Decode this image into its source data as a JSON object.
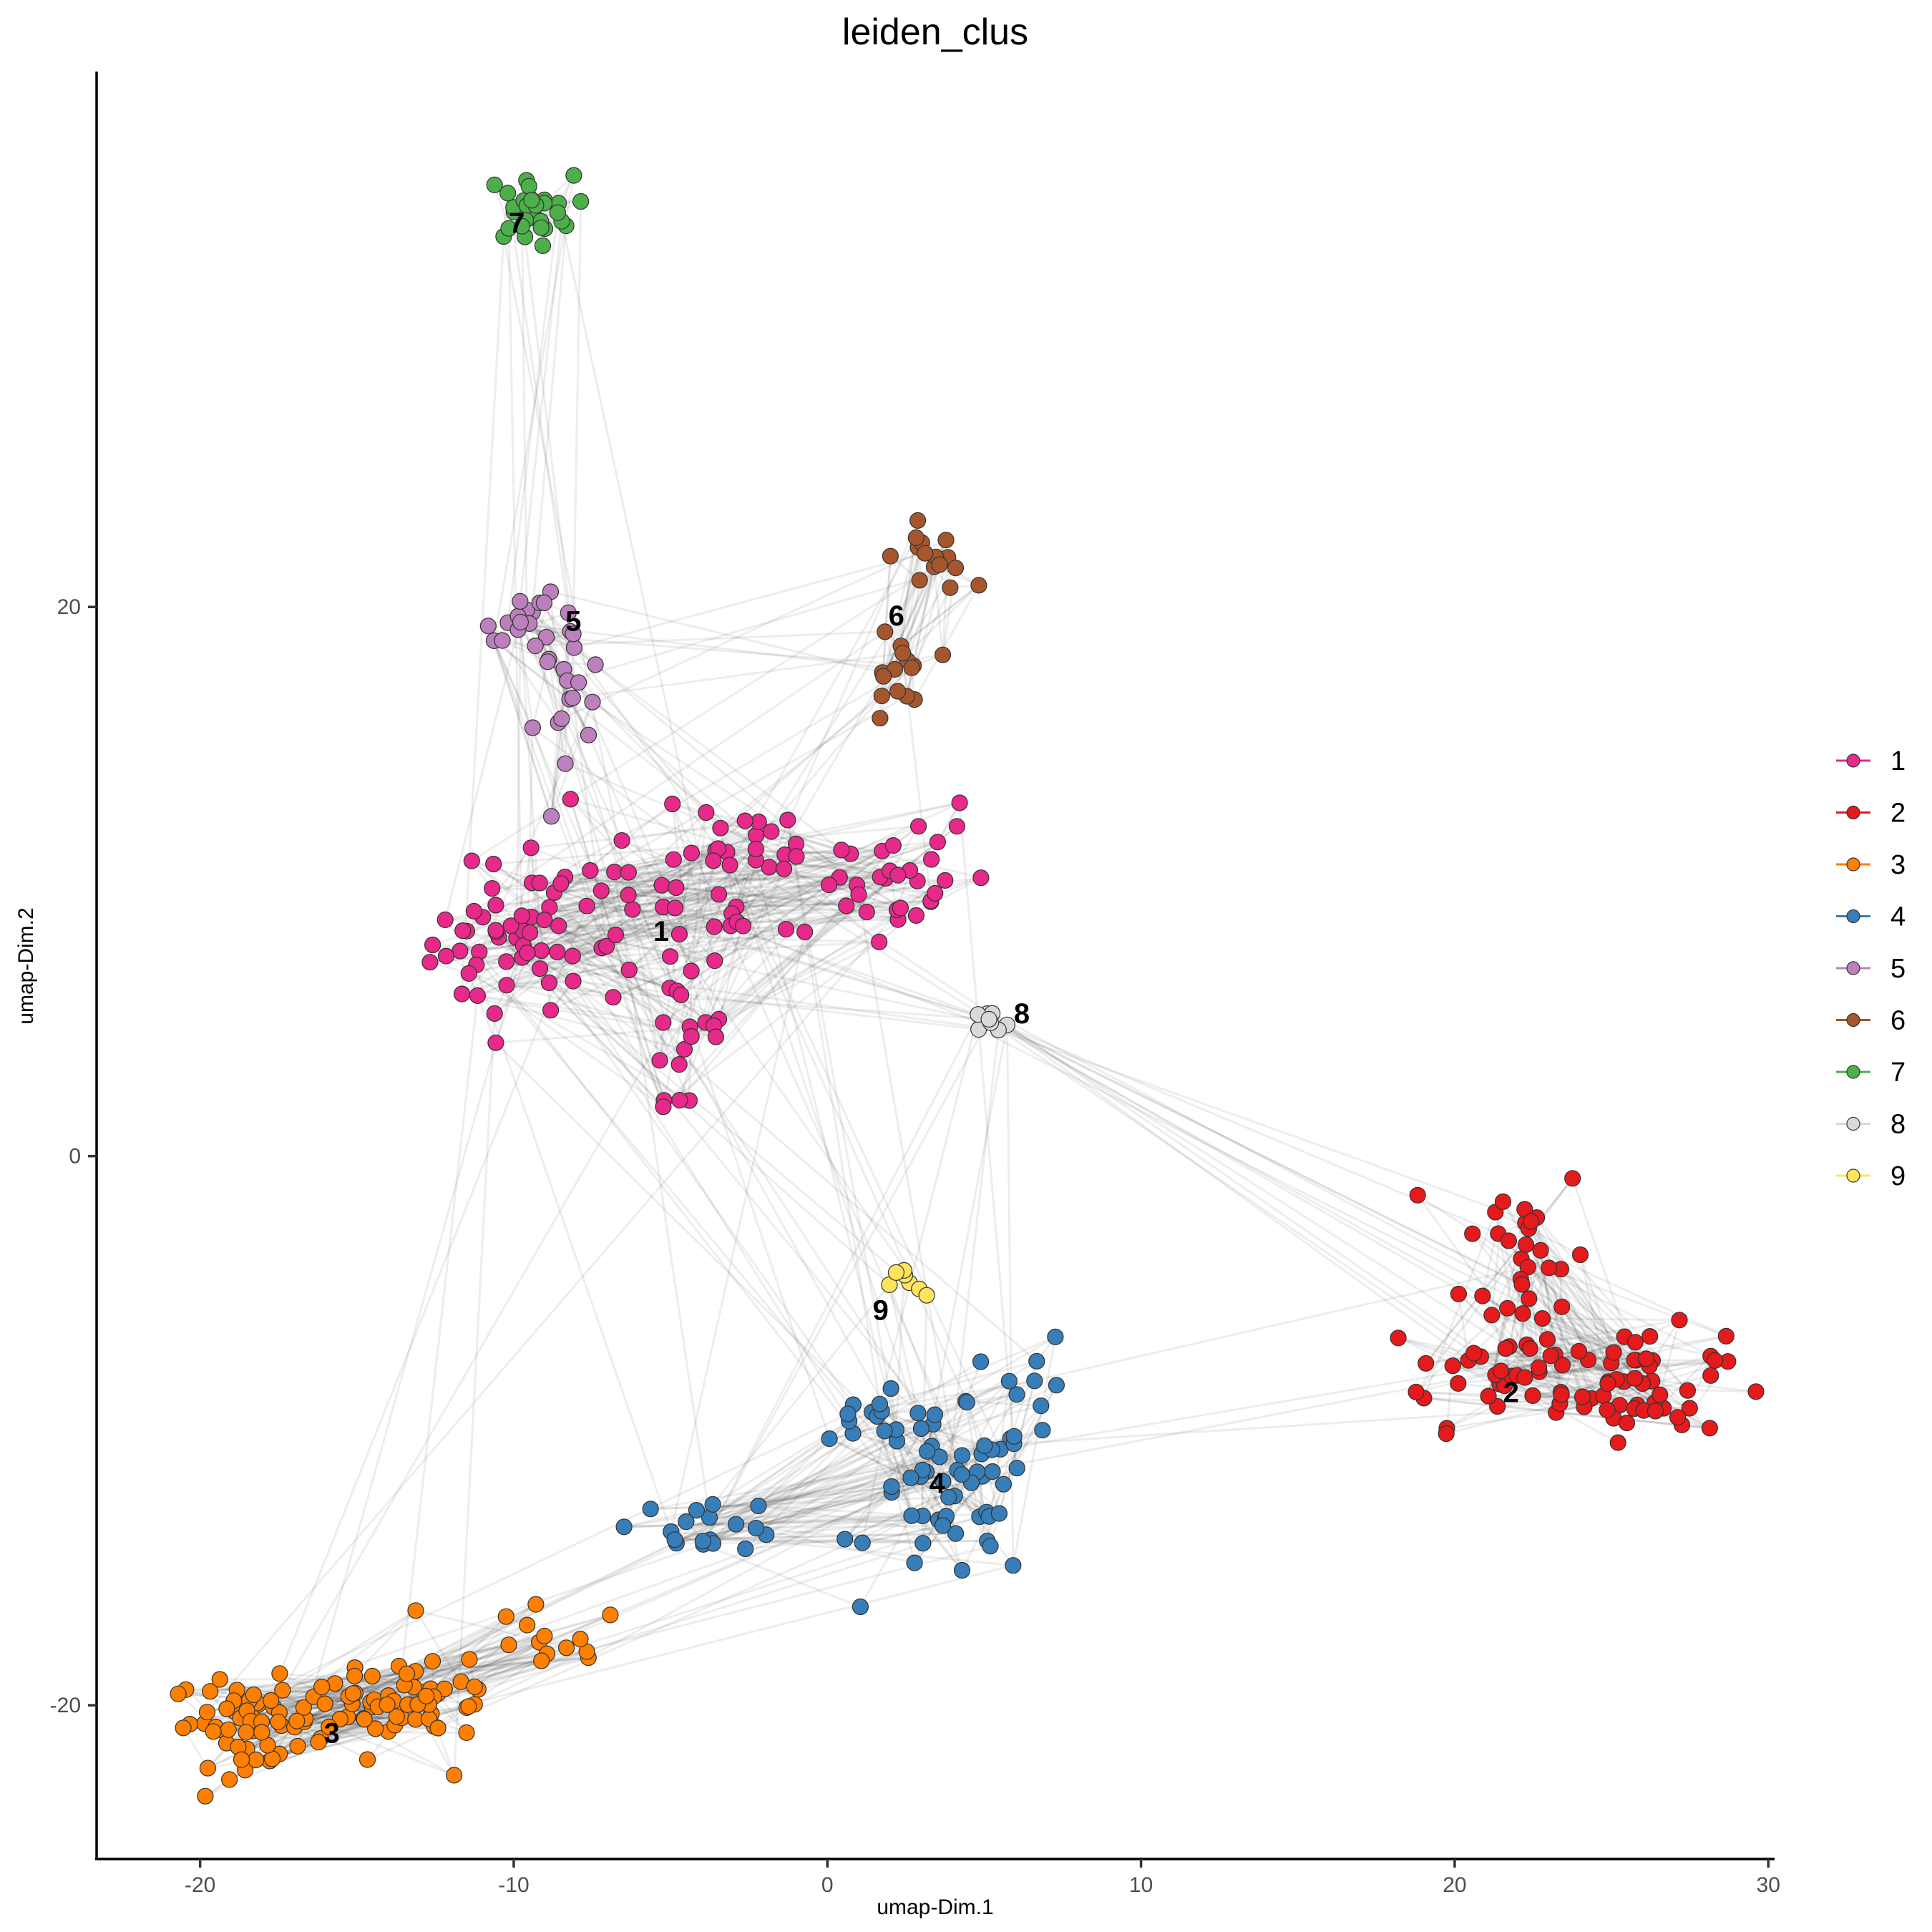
{
  "chart_data": {
    "type": "scatter",
    "title": "leiden_clus",
    "xlabel": "umap-Dim.1",
    "ylabel": "umap-Dim.2",
    "xlim": [
      -23.3,
      30.2
    ],
    "ylim": [
      -25.6,
      39.5
    ],
    "xticks": [
      -20,
      -10,
      0,
      10,
      20,
      30
    ],
    "yticks": [
      -20,
      0,
      20
    ],
    "grid": false,
    "legend_position": "right",
    "network_edges": true,
    "series": [
      {
        "name": "1",
        "color": "#E7298A",
        "center": [
          -5.3,
          8.2
        ],
        "label_pos": [
          -5.3,
          8.2
        ],
        "n": 150,
        "blobs": [
          [
            -10.2,
            7.8,
            1.2,
            1.4,
            0.25
          ],
          [
            -6.8,
            8.5,
            2.2,
            1.8,
            0.25
          ],
          [
            -2.0,
            10.0,
            2.5,
            1.3,
            0.22
          ],
          [
            1.5,
            10.5,
            1.8,
            1.6,
            0.18
          ],
          [
            -4.5,
            4.0,
            0.8,
            1.8,
            0.1
          ]
        ]
      },
      {
        "name": "2",
        "color": "#E41A1C",
        "center": [
          21.8,
          -8.6
        ],
        "label_pos": [
          21.8,
          -8.6
        ],
        "n": 110,
        "blobs": [
          [
            22.3,
            -3.5,
            1.0,
            1.8,
            0.25
          ],
          [
            21.8,
            -7.8,
            2.0,
            1.0,
            0.35
          ],
          [
            26.0,
            -8.3,
            1.3,
            1.0,
            0.4
          ]
        ]
      },
      {
        "name": "3",
        "color": "#FF7F00",
        "center": [
          -15.8,
          -21.0
        ],
        "label_pos": [
          -15.8,
          -21.0
        ],
        "n": 130,
        "blobs": [
          [
            -18.6,
            -20.6,
            1.2,
            0.8,
            0.35
          ],
          [
            -15.5,
            -20.5,
            1.6,
            0.8,
            0.3
          ],
          [
            -12.6,
            -19.5,
            1.2,
            0.9,
            0.25
          ],
          [
            -9.0,
            -17.8,
            1.3,
            0.7,
            0.1
          ]
        ]
      },
      {
        "name": "4",
        "color": "#377EB8",
        "center": [
          3.5,
          -11.9
        ],
        "label_pos": [
          3.5,
          -11.9
        ],
        "n": 95,
        "blobs": [
          [
            4.0,
            -12.6,
            1.3,
            1.5,
            0.55
          ],
          [
            1.8,
            -9.5,
            1.1,
            0.8,
            0.15
          ],
          [
            6.6,
            -8.5,
            0.6,
            1.0,
            0.1
          ],
          [
            -3.8,
            -13.4,
            1.2,
            0.5,
            0.2
          ]
        ]
      },
      {
        "name": "5",
        "color": "#BC80BD",
        "center": [
          -8.1,
          19.5
        ],
        "label_pos": [
          -8.1,
          19.5
        ],
        "n": 35,
        "blobs": [
          [
            -9.3,
            19.6,
            0.8,
            0.4,
            0.45
          ],
          [
            -8.4,
            17.2,
            0.7,
            1.2,
            0.55
          ]
        ]
      },
      {
        "name": "6",
        "color": "#A6562C",
        "center": [
          2.2,
          19.7
        ],
        "label_pos": [
          2.2,
          19.7
        ],
        "n": 30,
        "blobs": [
          [
            3.4,
            21.8,
            0.6,
            0.6,
            0.5
          ],
          [
            2.1,
            17.3,
            0.5,
            1.2,
            0.5
          ]
        ]
      },
      {
        "name": "7",
        "color": "#4DAF4A",
        "center": [
          -9.6,
          34.5
        ],
        "label_pos": [
          -9.9,
          34.0
        ],
        "n": 30,
        "blobs": [
          [
            -9.5,
            34.5,
            0.7,
            0.6,
            1.0
          ]
        ]
      },
      {
        "name": "8",
        "color": "#D9D9D9",
        "center": [
          5.0,
          4.8
        ],
        "label_pos": [
          6.2,
          5.2
        ],
        "n": 8,
        "blobs": [
          [
            5.0,
            4.7,
            0.5,
            0.3,
            1.0
          ]
        ]
      },
      {
        "name": "9",
        "color": "#FFE45C",
        "center": [
          2.2,
          -4.5
        ],
        "label_pos": [
          1.7,
          -5.6
        ],
        "n": 7,
        "blobs": [
          [
            2.6,
            -4.7,
            0.3,
            0.4,
            1.0
          ]
        ]
      }
    ]
  },
  "legend": {
    "items": [
      "1",
      "2",
      "3",
      "4",
      "5",
      "6",
      "7",
      "8",
      "9"
    ]
  }
}
